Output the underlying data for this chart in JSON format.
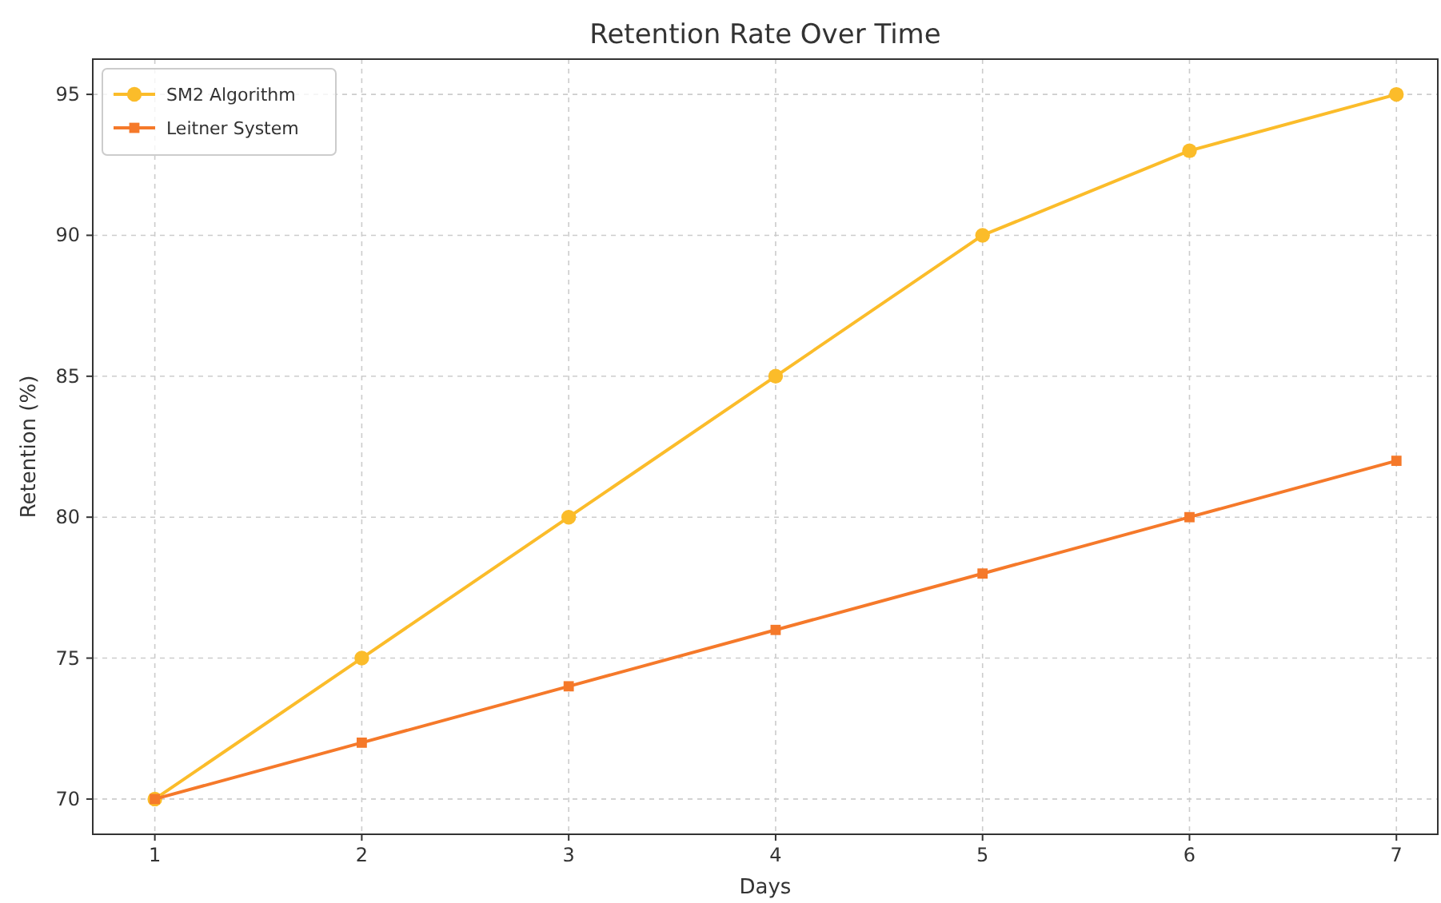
{
  "chart_data": {
    "type": "line",
    "title": "Retention Rate Over Time",
    "xlabel": "Days",
    "ylabel": "Retention (%)",
    "x": [
      1,
      2,
      3,
      4,
      5,
      6,
      7
    ],
    "series": [
      {
        "name": "SM2 Algorithm",
        "color": "#fbbc2a",
        "values": [
          70,
          75,
          80,
          85,
          90,
          93,
          95
        ],
        "marker": "circle"
      },
      {
        "name": "Leitner System",
        "color": "#f5792a",
        "values": [
          70,
          72,
          74,
          76,
          78,
          80,
          82
        ],
        "marker": "square"
      }
    ],
    "xlim": [
      0.7,
      7.2
    ],
    "xticks": [
      1,
      2,
      3,
      4,
      5,
      6,
      7
    ],
    "ylim": [
      68.75,
      96.25
    ],
    "yticks": [
      70,
      75,
      80,
      85,
      90,
      95
    ],
    "grid": true,
    "legend": "top left",
    "line_style": "solid"
  }
}
